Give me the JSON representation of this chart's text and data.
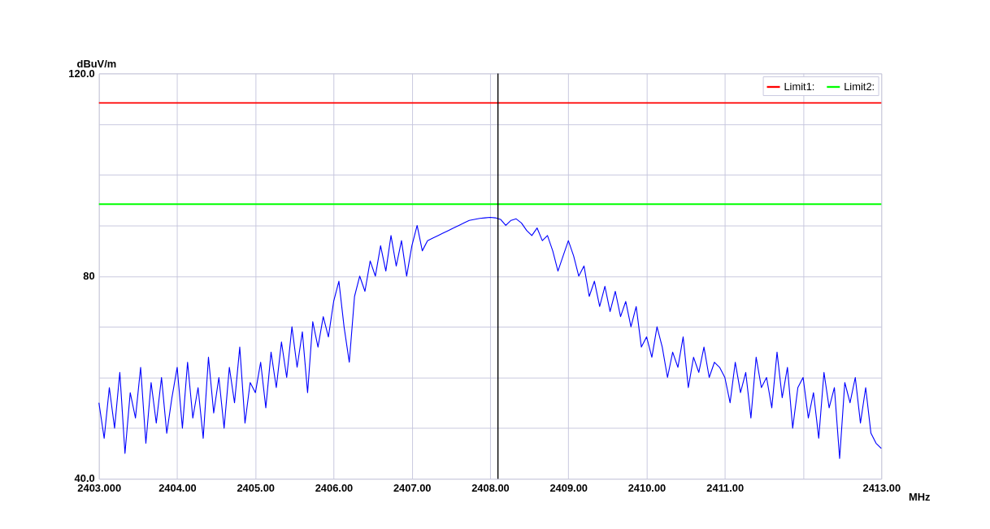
{
  "chart_data": {
    "type": "line",
    "xlabel": "MHz",
    "ylabel": "dBuV/m",
    "x": [
      2403.0,
      2403.067,
      2403.133,
      2403.2,
      2403.267,
      2403.333,
      2403.4,
      2403.467,
      2403.533,
      2403.6,
      2403.667,
      2403.733,
      2403.8,
      2403.867,
      2403.933,
      2404.0,
      2404.067,
      2404.133,
      2404.2,
      2404.267,
      2404.333,
      2404.4,
      2404.467,
      2404.533,
      2404.6,
      2404.667,
      2404.733,
      2404.8,
      2404.867,
      2404.933,
      2405.0,
      2405.067,
      2405.133,
      2405.2,
      2405.267,
      2405.333,
      2405.4,
      2405.467,
      2405.533,
      2405.6,
      2405.667,
      2405.733,
      2405.8,
      2405.867,
      2405.933,
      2406.0,
      2406.067,
      2406.133,
      2406.2,
      2406.267,
      2406.333,
      2406.4,
      2406.467,
      2406.533,
      2406.6,
      2406.667,
      2406.733,
      2406.8,
      2406.867,
      2406.933,
      2407.0,
      2407.067,
      2407.133,
      2407.2,
      2407.267,
      2407.333,
      2407.4,
      2407.467,
      2407.533,
      2407.6,
      2407.667,
      2407.733,
      2407.8,
      2407.867,
      2407.933,
      2408.0,
      2408.067,
      2408.133,
      2408.2,
      2408.267,
      2408.333,
      2408.4,
      2408.467,
      2408.533,
      2408.6,
      2408.667,
      2408.733,
      2408.8,
      2408.867,
      2408.933,
      2409.0,
      2409.067,
      2409.133,
      2409.2,
      2409.267,
      2409.333,
      2409.4,
      2409.467,
      2409.533,
      2409.6,
      2409.667,
      2409.733,
      2409.8,
      2409.867,
      2409.933,
      2410.0,
      2410.067,
      2410.133,
      2410.2,
      2410.267,
      2410.333,
      2410.4,
      2410.467,
      2410.533,
      2410.6,
      2410.667,
      2410.733,
      2410.8,
      2410.867,
      2410.933,
      2411.0,
      2411.067,
      2411.133,
      2411.2,
      2411.267,
      2411.333,
      2411.4,
      2411.467,
      2411.533,
      2411.6,
      2411.667,
      2411.733,
      2411.8,
      2411.867,
      2411.933,
      2412.0,
      2412.067,
      2412.133,
      2412.2,
      2412.267,
      2412.333,
      2412.4,
      2412.467,
      2412.533,
      2412.6,
      2412.667,
      2412.733,
      2412.8,
      2412.867,
      2412.933,
      2413.0
    ],
    "series": [
      {
        "color": "#0000ff",
        "values": [
          55,
          48,
          58,
          50,
          61,
          45,
          57,
          52,
          62,
          47,
          59,
          51,
          60,
          49,
          56,
          62,
          50,
          63,
          52,
          58,
          48,
          64,
          53,
          60,
          50,
          62,
          55,
          66,
          51,
          59,
          57,
          63,
          54,
          65,
          58,
          67,
          60,
          70,
          62,
          69,
          57,
          71,
          66,
          72,
          68,
          75,
          79,
          70,
          63,
          76,
          80,
          77,
          83,
          80,
          86,
          81,
          88,
          82,
          87,
          80,
          86,
          90,
          85,
          87,
          87.5,
          88,
          88.5,
          89,
          89.5,
          90,
          90.5,
          91,
          91.2,
          91.4,
          91.5,
          91.6,
          91.5,
          91.2,
          90,
          91,
          91.3,
          90.5,
          89,
          88,
          89.5,
          87,
          88,
          85,
          81,
          84,
          87,
          84,
          80,
          82,
          76,
          79,
          74,
          78,
          73,
          77,
          72,
          75,
          70,
          74,
          66,
          68,
          64,
          70,
          66,
          60,
          65,
          62,
          68,
          58,
          64,
          61,
          66,
          60,
          63,
          62,
          60,
          55,
          63,
          57,
          61,
          52,
          64,
          58,
          60,
          54,
          65,
          56,
          62,
          50,
          58,
          60,
          52,
          57,
          48,
          61,
          54,
          58,
          44,
          59,
          55,
          60,
          51,
          58,
          49,
          47,
          46
        ]
      }
    ],
    "xlim": [
      2403,
      2413
    ],
    "xticks": [
      {
        "value": 2403,
        "label": "2403.000"
      },
      {
        "value": 2404,
        "label": "2404.00"
      },
      {
        "value": 2405,
        "label": "2405.00"
      },
      {
        "value": 2406,
        "label": "2406.00"
      },
      {
        "value": 2407,
        "label": "2407.00"
      },
      {
        "value": 2408,
        "label": "2408.00"
      },
      {
        "value": 2409,
        "label": "2409.00"
      },
      {
        "value": 2410,
        "label": "2410.00"
      },
      {
        "value": 2411,
        "label": "2411.00"
      },
      {
        "value": 2412,
        "label": null
      },
      {
        "value": 2413,
        "label": "2413.00"
      }
    ],
    "ylim": [
      40,
      120
    ],
    "yticks": [
      {
        "value": 40,
        "label": "40.0"
      },
      {
        "value": 50,
        "label": null
      },
      {
        "value": 60,
        "label": null
      },
      {
        "value": 70,
        "label": null
      },
      80,
      {
        "value": 90,
        "label": null
      },
      {
        "value": 100,
        "label": null
      },
      {
        "value": 110,
        "label": null
      },
      {
        "value": 120,
        "label": "120.0"
      }
    ],
    "ref_lines": [
      {
        "axis": "y",
        "value": 114.2,
        "label": "Limit1:",
        "color": "#ff0000"
      },
      {
        "axis": "y",
        "value": 94.2,
        "label": "Limit2:",
        "color": "#00ff00"
      },
      {
        "axis": "x",
        "value": 2408.1,
        "color": "#000000"
      }
    ],
    "grid": true,
    "legend": "top right",
    "marker": "none",
    "line_style": "solid"
  }
}
